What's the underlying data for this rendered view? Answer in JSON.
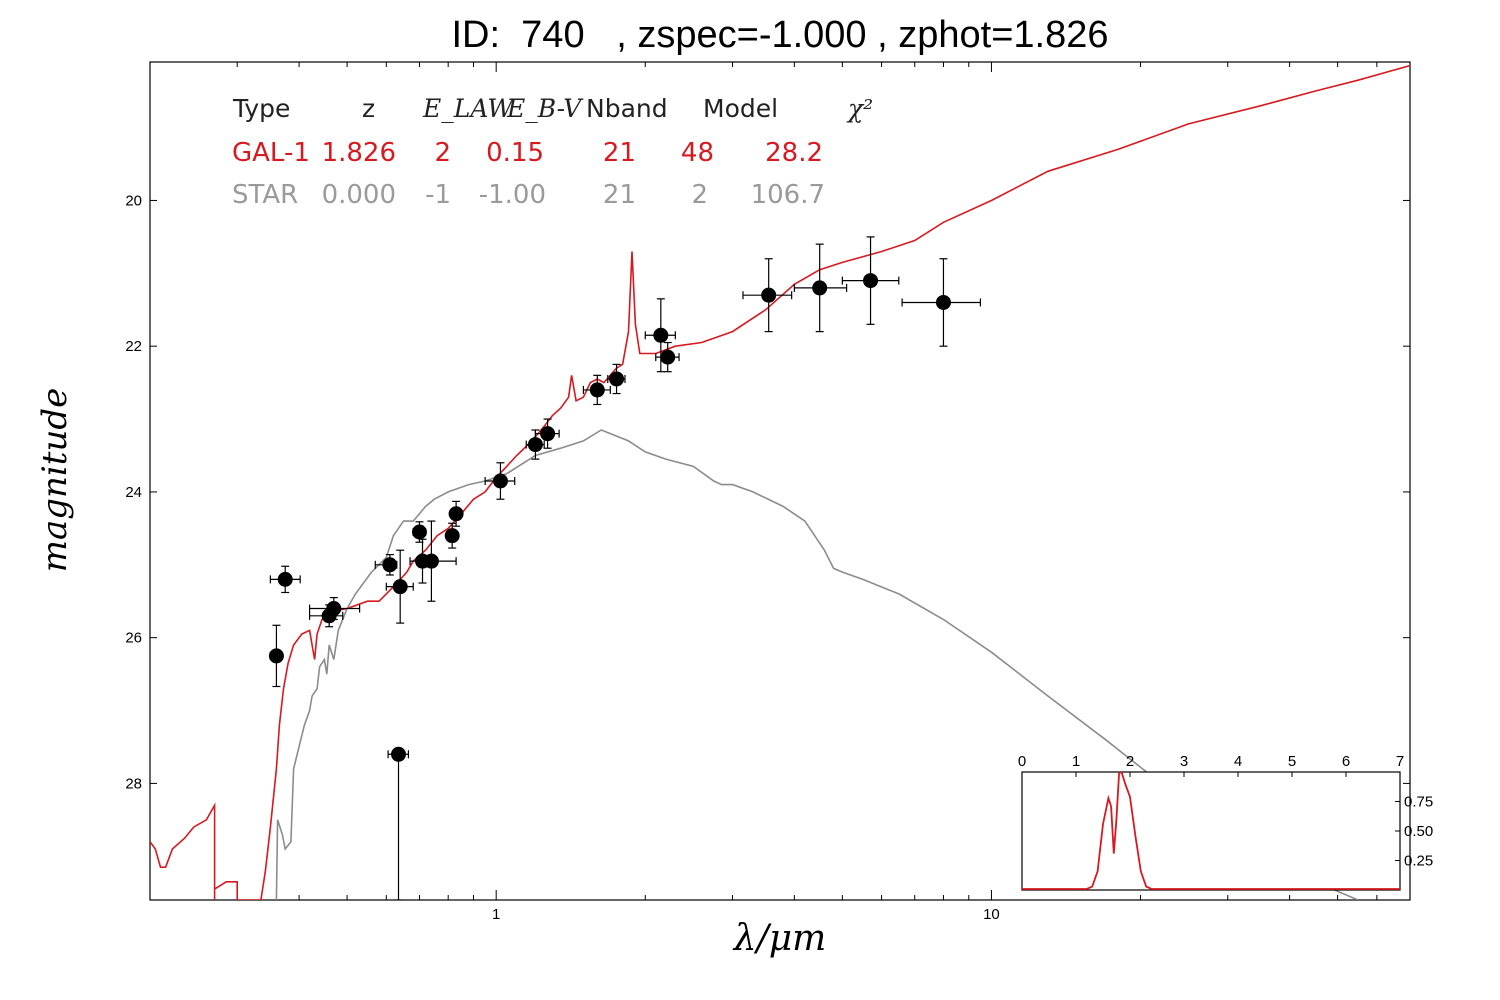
{
  "chart_data": [
    {
      "type": "scatter",
      "title": "ID:  740   , zspec=-1.000 , zphot=1.826",
      "xlabel": "λ/μm",
      "ylabel": "magnitude",
      "xscale": "log",
      "xlim": [
        0.2,
        70
      ],
      "ylim": [
        29.6,
        18.1
      ],
      "y_inverted": true,
      "x_ticks": [
        {
          "value": 1,
          "label": "1"
        },
        {
          "value": 10,
          "label": "10"
        }
      ],
      "y_ticks": [
        {
          "value": 20,
          "label": "20"
        },
        {
          "value": 22,
          "label": "22"
        },
        {
          "value": 24,
          "label": "24"
        },
        {
          "value": 26,
          "label": "26"
        },
        {
          "value": 28,
          "label": "28"
        }
      ],
      "colors": {
        "galaxy": "#d71920",
        "star": "#8c8c8c",
        "points": "#000000"
      },
      "points": [
        {
          "x": 0.375,
          "y": 25.2,
          "xerr_lo": 0.025,
          "xerr_hi": 0.027,
          "yerr": 0.18
        },
        {
          "x": 0.36,
          "y": 26.25,
          "xerr_lo": 0.01,
          "xerr_hi": 0.01,
          "yerr": 0.42
        },
        {
          "x": 0.46,
          "y": 25.7,
          "xerr_lo": 0.04,
          "xerr_hi": 0.03,
          "yerr": 0.15
        },
        {
          "x": 0.47,
          "y": 25.6,
          "xerr_lo": 0.05,
          "xerr_hi": 0.06,
          "yerr": 0.15
        },
        {
          "x": 0.61,
          "y": 25.0,
          "xerr_lo": 0.04,
          "xerr_hi": 0.02,
          "yerr": 0.14
        },
        {
          "x": 0.64,
          "y": 25.3,
          "xerr_lo": 0.04,
          "xerr_hi": 0.04,
          "yerr": 0.5
        },
        {
          "x": 0.635,
          "y": 27.6,
          "xerr_lo": 0.03,
          "xerr_hi": 0.03,
          "yerr_hi": 2.0,
          "yerr_lo": 0.0
        },
        {
          "x": 0.7,
          "y": 24.55,
          "xerr_lo": 0.02,
          "xerr_hi": 0.02,
          "yerr": 0.14
        },
        {
          "x": 0.71,
          "y": 24.95,
          "xerr_lo": 0.04,
          "xerr_hi": 0.05,
          "yerr": 0.3
        },
        {
          "x": 0.74,
          "y": 24.95,
          "xerr_lo": 0.03,
          "xerr_hi": 0.09,
          "yerr": 0.55
        },
        {
          "x": 0.815,
          "y": 24.6,
          "xerr_lo": 0.02,
          "xerr_hi": 0.02,
          "yerr": 0.17
        },
        {
          "x": 0.83,
          "y": 24.3,
          "xerr_lo": 0.02,
          "xerr_hi": 0.02,
          "yerr": 0.17
        },
        {
          "x": 1.02,
          "y": 23.85,
          "xerr_lo": 0.07,
          "xerr_hi": 0.07,
          "yerr": 0.25
        },
        {
          "x": 1.2,
          "y": 23.35,
          "xerr_lo": 0.05,
          "xerr_hi": 0.05,
          "yerr": 0.2
        },
        {
          "x": 1.27,
          "y": 23.2,
          "xerr_lo": 0.07,
          "xerr_hi": 0.07,
          "yerr": 0.2
        },
        {
          "x": 1.6,
          "y": 22.6,
          "xerr_lo": 0.1,
          "xerr_hi": 0.1,
          "yerr": 0.2
        },
        {
          "x": 1.75,
          "y": 22.45,
          "xerr_lo": 0.07,
          "xerr_hi": 0.07,
          "yerr": 0.2
        },
        {
          "x": 2.15,
          "y": 21.85,
          "xerr_lo": 0.15,
          "xerr_hi": 0.15,
          "yerr": 0.5
        },
        {
          "x": 2.22,
          "y": 22.15,
          "xerr_lo": 0.12,
          "xerr_hi": 0.12,
          "yerr": 0.2
        },
        {
          "x": 3.55,
          "y": 21.3,
          "xerr_lo": 0.4,
          "xerr_hi": 0.4,
          "yerr": 0.5
        },
        {
          "x": 4.5,
          "y": 21.2,
          "xerr_lo": 0.5,
          "xerr_hi": 0.6,
          "yerr": 0.6
        },
        {
          "x": 5.7,
          "y": 21.1,
          "xerr_lo": 0.7,
          "xerr_hi": 0.8,
          "yerr": 0.6
        },
        {
          "x": 8.0,
          "y": 21.4,
          "xerr_lo": 1.4,
          "xerr_hi": 1.5,
          "yerr": 0.6
        }
      ],
      "series": [
        {
          "values": [
            [
              0.2,
              28.8
            ],
            [
              0.205,
              28.9
            ],
            [
              0.21,
              29.15
            ],
            [
              0.215,
              29.15
            ],
            [
              0.222,
              28.9
            ],
            [
              0.235,
              28.75
            ],
            [
              0.245,
              28.6
            ],
            [
              0.26,
              28.5
            ],
            [
              0.27,
              28.3
            ],
            [
              0.27,
              29.6
            ],
            [
              0.27,
              29.45
            ],
            [
              0.285,
              29.35
            ],
            [
              0.3,
              29.35
            ],
            [
              0.3,
              29.6
            ],
            [
              0.335,
              29.6
            ],
            [
              0.342,
              29.2
            ],
            [
              0.35,
              28.6
            ],
            [
              0.36,
              27.8
            ],
            [
              0.365,
              27.2
            ],
            [
              0.372,
              26.7
            ],
            [
              0.38,
              26.35
            ],
            [
              0.39,
              26.1
            ],
            [
              0.405,
              25.95
            ],
            [
              0.42,
              25.9
            ],
            [
              0.425,
              26.1
            ],
            [
              0.43,
              26.3
            ],
            [
              0.435,
              25.95
            ],
            [
              0.445,
              25.75
            ],
            [
              0.46,
              25.65
            ],
            [
              0.5,
              25.6
            ],
            [
              0.55,
              25.5
            ],
            [
              0.58,
              25.5
            ],
            [
              0.6,
              25.4
            ],
            [
              0.62,
              25.3
            ],
            [
              0.64,
              25.2
            ],
            [
              0.66,
              25.1
            ],
            [
              0.68,
              24.95
            ],
            [
              0.72,
              24.8
            ],
            [
              0.76,
              24.6
            ],
            [
              0.8,
              24.5
            ],
            [
              0.85,
              24.3
            ],
            [
              0.9,
              24.1
            ],
            [
              0.95,
              24.0
            ],
            [
              1.0,
              23.8
            ],
            [
              1.05,
              23.65
            ],
            [
              1.1,
              23.5
            ],
            [
              1.18,
              23.3
            ],
            [
              1.25,
              23.1
            ],
            [
              1.3,
              22.95
            ],
            [
              1.35,
              22.85
            ],
            [
              1.4,
              22.7
            ],
            [
              1.42,
              22.4
            ],
            [
              1.45,
              22.75
            ],
            [
              1.5,
              22.7
            ],
            [
              1.55,
              22.5
            ],
            [
              1.6,
              22.45
            ],
            [
              1.65,
              22.5
            ],
            [
              1.7,
              22.4
            ],
            [
              1.75,
              22.3
            ],
            [
              1.8,
              22.25
            ],
            [
              1.85,
              21.8
            ],
            [
              1.88,
              20.7
            ],
            [
              1.91,
              21.7
            ],
            [
              1.95,
              22.1
            ],
            [
              2.1,
              22.1
            ],
            [
              2.3,
              22.0
            ],
            [
              2.6,
              21.95
            ],
            [
              3.0,
              21.8
            ],
            [
              3.5,
              21.5
            ],
            [
              4.0,
              21.15
            ],
            [
              4.5,
              20.95
            ],
            [
              5.0,
              20.85
            ],
            [
              6.0,
              20.7
            ],
            [
              7.0,
              20.55
            ],
            [
              8.0,
              20.3
            ],
            [
              10.0,
              20.0
            ],
            [
              13.0,
              19.6
            ],
            [
              18.0,
              19.3
            ],
            [
              25.0,
              18.95
            ],
            [
              35.0,
              18.7
            ],
            [
              45.0,
              18.5
            ],
            [
              55.0,
              18.35
            ],
            [
              70.0,
              18.15
            ]
          ]
        },
        {
          "values": [
            [
              0.36,
              29.6
            ],
            [
              0.362,
              28.5
            ],
            [
              0.37,
              28.7
            ],
            [
              0.375,
              28.9
            ],
            [
              0.385,
              28.8
            ],
            [
              0.39,
              27.8
            ],
            [
              0.41,
              27.2
            ],
            [
              0.42,
              27.0
            ],
            [
              0.425,
              26.8
            ],
            [
              0.435,
              26.7
            ],
            [
              0.44,
              26.4
            ],
            [
              0.45,
              26.3
            ],
            [
              0.455,
              26.5
            ],
            [
              0.46,
              26.1
            ],
            [
              0.47,
              26.3
            ],
            [
              0.48,
              25.9
            ],
            [
              0.5,
              25.6
            ],
            [
              0.52,
              25.4
            ],
            [
              0.56,
              25.1
            ],
            [
              0.6,
              24.9
            ],
            [
              0.62,
              24.6
            ],
            [
              0.65,
              24.4
            ],
            [
              0.68,
              24.4
            ],
            [
              0.72,
              24.2
            ],
            [
              0.75,
              24.1
            ],
            [
              0.8,
              24.0
            ],
            [
              0.88,
              23.9
            ],
            [
              0.95,
              23.85
            ],
            [
              1.05,
              23.75
            ],
            [
              1.2,
              23.5
            ],
            [
              1.35,
              23.4
            ],
            [
              1.5,
              23.3
            ],
            [
              1.63,
              23.15
            ],
            [
              1.7,
              23.2
            ],
            [
              1.85,
              23.3
            ],
            [
              2.0,
              23.45
            ],
            [
              2.2,
              23.55
            ],
            [
              2.5,
              23.65
            ],
            [
              2.75,
              23.85
            ],
            [
              2.85,
              23.9
            ],
            [
              3.0,
              23.9
            ],
            [
              3.3,
              24.0
            ],
            [
              3.8,
              24.2
            ],
            [
              4.2,
              24.4
            ],
            [
              4.6,
              24.8
            ],
            [
              4.8,
              25.05
            ],
            [
              5.0,
              25.1
            ],
            [
              5.5,
              25.2
            ],
            [
              6.5,
              25.4
            ],
            [
              8.0,
              25.75
            ],
            [
              10.0,
              26.2
            ],
            [
              13.0,
              26.8
            ],
            [
              17.0,
              27.4
            ],
            [
              22.0,
              28.0
            ],
            [
              30.0,
              28.7
            ],
            [
              40.0,
              29.2
            ],
            [
              55.0,
              29.6
            ]
          ]
        }
      ],
      "legend_table": {
        "headers": [
          "Type",
          "z",
          "E_LAW",
          "E_B-V",
          "Nband",
          "Model",
          "χ²"
        ],
        "rows": [
          {
            "color": "#d71920",
            "cells": [
              "GAL-1",
              "1.826",
              "2",
              "0.15",
              "21",
              "48",
              "28.2"
            ]
          },
          {
            "color": "#9a9a9a",
            "cells": [
              "STAR",
              "0.000",
              "-1",
              "-1.00",
              "21",
              "2",
              "106.7"
            ]
          }
        ]
      }
    },
    {
      "type": "line",
      "placement": "inset bottom-right",
      "xlim": [
        0,
        7
      ],
      "ylim": [
        0,
        1.0
      ],
      "x_ticks": [
        0,
        1,
        2,
        3,
        4,
        5,
        6,
        7
      ],
      "y_ticks": [
        {
          "value": 0.25,
          "label": "0.25"
        },
        {
          "value": 0.5,
          "label": "0.50"
        },
        {
          "value": 0.75,
          "label": "0.75"
        }
      ],
      "series": [
        {
          "values": [
            [
              0,
              0
            ],
            [
              1.2,
              0
            ],
            [
              1.3,
              0.02
            ],
            [
              1.4,
              0.15
            ],
            [
              1.5,
              0.55
            ],
            [
              1.6,
              0.77
            ],
            [
              1.65,
              0.7
            ],
            [
              1.7,
              0.3
            ],
            [
              1.75,
              0.6
            ],
            [
              1.8,
              1.0
            ],
            [
              1.85,
              0.98
            ],
            [
              1.92,
              0.88
            ],
            [
              2.0,
              0.78
            ],
            [
              2.1,
              0.45
            ],
            [
              2.2,
              0.15
            ],
            [
              2.3,
              0.02
            ],
            [
              2.4,
              0
            ],
            [
              7,
              0
            ]
          ]
        }
      ]
    }
  ]
}
